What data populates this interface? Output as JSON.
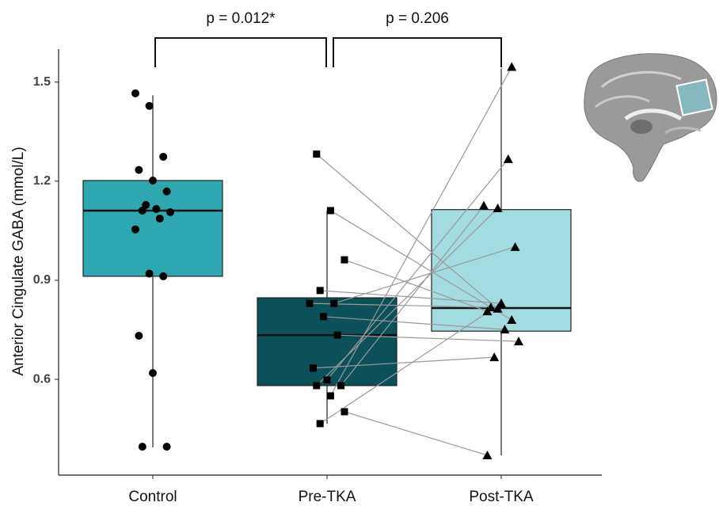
{
  "chart_data": {
    "type": "boxplot",
    "y_label": "Anterior Cingulate GABA (mmol/L)",
    "categories": [
      "Control",
      "Pre-TKA",
      "Post-TKA"
    ],
    "ylim": [
      0.31,
      1.6
    ],
    "yticks": [
      0.6,
      0.9,
      1.2,
      1.5
    ],
    "comparisons": [
      "p = 0.012*",
      "p = 0.206"
    ],
    "paired_lines": true,
    "boxes": [
      {
        "min": 0.394,
        "q1": 0.912,
        "median": 1.111,
        "q3": 1.202,
        "max": 1.46,
        "color": "#2fa7b0"
      },
      {
        "min": 0.466,
        "q1": 0.581,
        "median": 0.734,
        "q3": 0.847,
        "max": 1.111,
        "color": "#0b5157"
      },
      {
        "min": 0.37,
        "q1": 0.746,
        "median": 0.816,
        "q3": 1.114,
        "max": 1.541,
        "color": "#a3dce0"
      }
    ],
    "points": [
      {
        "marker": "circle",
        "values": [
          1.466,
          1.428,
          1.274,
          1.234,
          1.202,
          1.169,
          1.111,
          1.116,
          1.106,
          1.128,
          1.087,
          1.054,
          0.92,
          0.912,
          0.732,
          0.619,
          0.396,
          0.396
        ]
      },
      {
        "marker": "square",
        "values": [
          1.282,
          1.111,
          0.962,
          0.869,
          0.83,
          0.83,
          0.79,
          0.734,
          0.634,
          0.598,
          0.581,
          0.581,
          0.55,
          0.502,
          0.466
        ]
      },
      {
        "marker": "triangle",
        "values": [
          0.814,
          0.78,
          0.806,
          0.83,
          1.001,
          0.818,
          0.751,
          0.715,
          0.667,
          1.267,
          1.126,
          1.118,
          1.546,
          0.37,
          0.83
        ]
      }
    ]
  }
}
